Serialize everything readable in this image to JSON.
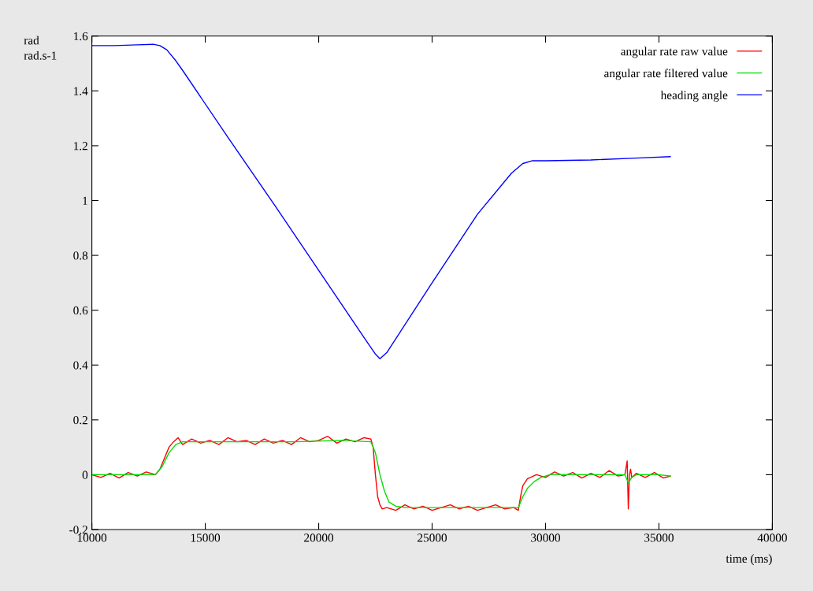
{
  "chart_data": {
    "type": "line",
    "xlabel": "time (ms)",
    "ylabel": "rad\nrad.s-1",
    "xlim": [
      10000,
      40000
    ],
    "xticks": [
      10000,
      15000,
      20000,
      25000,
      30000,
      35000,
      40000
    ],
    "ylim": [
      -0.2,
      1.6
    ],
    "yticks": [
      -0.2,
      0,
      0.2,
      0.4,
      0.6,
      0.8,
      1,
      1.2,
      1.4,
      1.6
    ],
    "grid": false,
    "legend": "top right",
    "marker": "none",
    "line_style": "solid",
    "series": [
      {
        "name": "angular rate raw value",
        "color": "#ff0000",
        "x": [
          10000,
          10400,
          10800,
          11200,
          11600,
          12000,
          12400,
          12800,
          13000,
          13200,
          13400,
          13600,
          13800,
          14000,
          14400,
          14800,
          15200,
          15600,
          16000,
          16400,
          16800,
          17200,
          17600,
          18000,
          18400,
          18800,
          19200,
          19600,
          20000,
          20400,
          20800,
          21200,
          21600,
          22000,
          22300,
          22400,
          22500,
          22600,
          22700,
          22800,
          23000,
          23400,
          23800,
          24200,
          24600,
          25000,
          25400,
          25800,
          26200,
          26600,
          27000,
          27400,
          27800,
          28200,
          28600,
          28800,
          28900,
          29000,
          29200,
          29600,
          30000,
          30400,
          30800,
          31200,
          31600,
          32000,
          32400,
          32800,
          33200,
          33500,
          33600,
          33650,
          33700,
          33750,
          33800,
          34000,
          34400,
          34800,
          35200,
          35500
        ],
        "values": [
          0.0,
          -0.01,
          0.005,
          -0.012,
          0.008,
          -0.005,
          0.01,
          0.0,
          0.02,
          0.06,
          0.1,
          0.12,
          0.135,
          0.11,
          0.13,
          0.115,
          0.125,
          0.11,
          0.135,
          0.12,
          0.125,
          0.11,
          0.13,
          0.115,
          0.125,
          0.11,
          0.135,
          0.12,
          0.125,
          0.14,
          0.115,
          0.13,
          0.12,
          0.135,
          0.13,
          0.1,
          0.0,
          -0.08,
          -0.11,
          -0.125,
          -0.12,
          -0.13,
          -0.11,
          -0.125,
          -0.115,
          -0.13,
          -0.12,
          -0.11,
          -0.125,
          -0.115,
          -0.13,
          -0.12,
          -0.11,
          -0.125,
          -0.12,
          -0.13,
          -0.08,
          -0.04,
          -0.015,
          0.0,
          -0.01,
          0.01,
          -0.005,
          0.008,
          -0.012,
          0.005,
          -0.01,
          0.015,
          -0.005,
          0.0,
          0.05,
          -0.125,
          0.0,
          0.02,
          -0.01,
          0.005,
          -0.01,
          0.008,
          -0.012,
          -0.005
        ]
      },
      {
        "name": "angular rate filtered value",
        "color": "#00dd00",
        "x": [
          10000,
          11000,
          12000,
          12800,
          13100,
          13400,
          13700,
          14000,
          15000,
          17000,
          19000,
          21000,
          22300,
          22500,
          22700,
          22900,
          23100,
          23400,
          23800,
          25000,
          27000,
          28800,
          29000,
          29200,
          29500,
          29800,
          30200,
          31000,
          32000,
          33000,
          33500,
          33650,
          33800,
          34000,
          35000,
          35500
        ],
        "values": [
          0.0,
          0.0,
          0.0,
          0.0,
          0.03,
          0.08,
          0.11,
          0.12,
          0.12,
          0.12,
          0.12,
          0.125,
          0.12,
          0.08,
          0.0,
          -0.06,
          -0.1,
          -0.115,
          -0.12,
          -0.12,
          -0.12,
          -0.12,
          -0.08,
          -0.05,
          -0.025,
          -0.01,
          0.0,
          0.0,
          0.0,
          0.0,
          0.0,
          -0.03,
          -0.01,
          0.0,
          0.0,
          -0.005
        ]
      },
      {
        "name": "heading angle",
        "color": "#0000ff",
        "x": [
          10000,
          11000,
          12000,
          12700,
          13000,
          13300,
          13700,
          14000,
          16000,
          18000,
          20000,
          22000,
          22500,
          22700,
          23000,
          25000,
          27000,
          28500,
          29000,
          29400,
          30000,
          32000,
          34000,
          35500
        ],
        "values": [
          1.565,
          1.565,
          1.568,
          1.57,
          1.565,
          1.55,
          1.51,
          1.475,
          1.23,
          0.99,
          0.745,
          0.5,
          0.44,
          0.423,
          0.445,
          0.7,
          0.95,
          1.1,
          1.135,
          1.145,
          1.145,
          1.148,
          1.155,
          1.16
        ]
      }
    ]
  }
}
